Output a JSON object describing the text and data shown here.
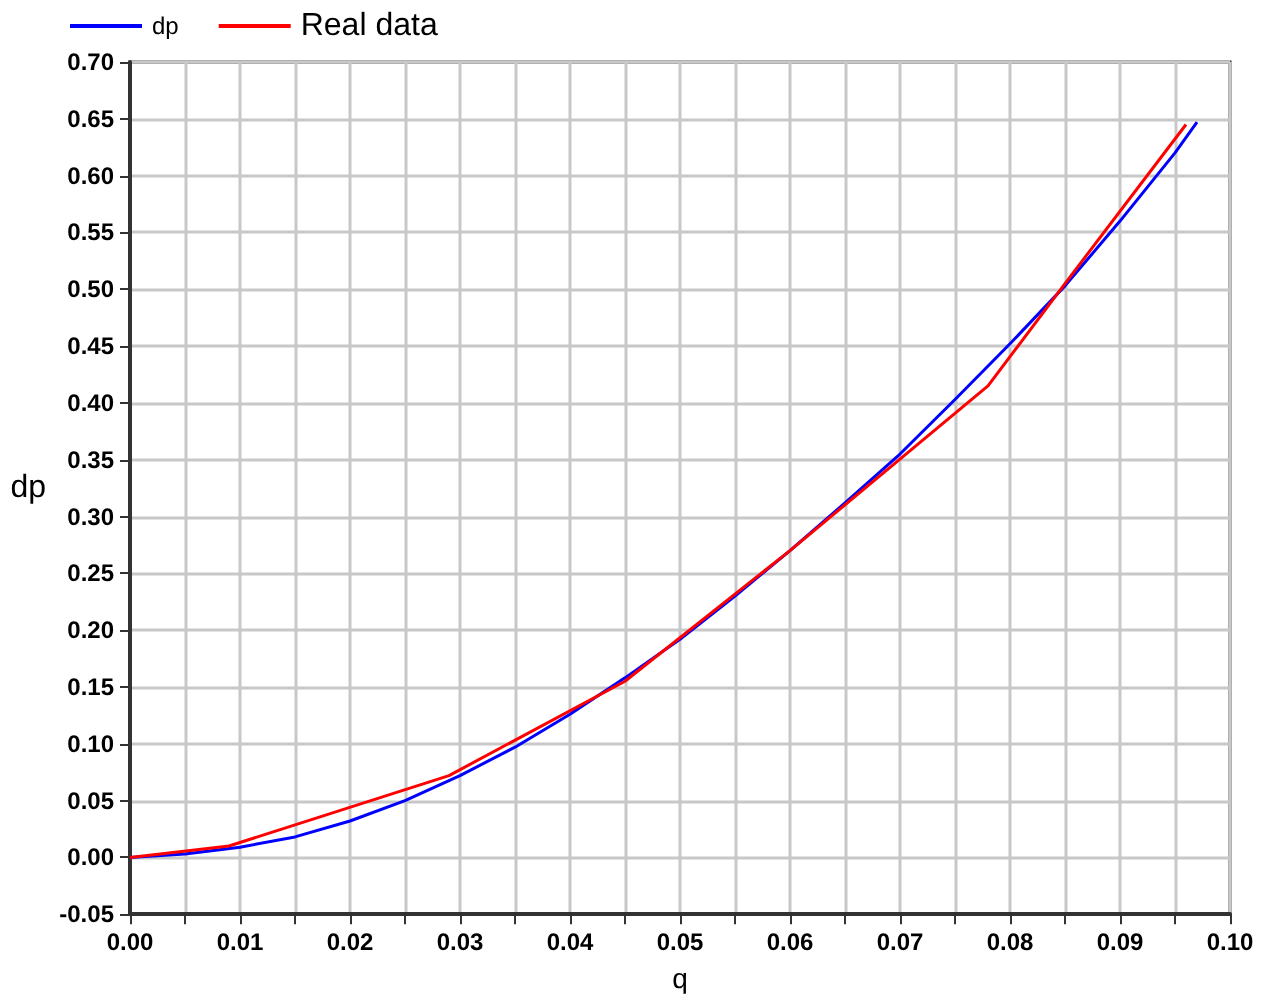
{
  "chart_data": {
    "type": "line",
    "xlabel": "q",
    "ylabel": "dp",
    "legend": "top left",
    "grid": true,
    "marker": "none",
    "line_style": "solid",
    "xlim": [
      0,
      0.1
    ],
    "xticks": [
      {
        "value": 0,
        "label": "0.00"
      },
      {
        "value": 0.005,
        "label": null
      },
      0.01,
      {
        "value": 0.015,
        "label": null
      },
      0.02,
      {
        "value": 0.025,
        "label": null
      },
      0.03,
      {
        "value": 0.035,
        "label": null
      },
      0.04,
      {
        "value": 0.045,
        "label": null
      },
      0.05,
      {
        "value": 0.055,
        "label": null
      },
      0.06,
      {
        "value": 0.065,
        "label": null
      },
      0.07,
      {
        "value": 0.075,
        "label": null
      },
      0.08,
      {
        "value": 0.085,
        "label": null
      },
      0.09,
      {
        "value": 0.095,
        "label": null
      },
      {
        "value": 0.1,
        "label": "0.10"
      }
    ],
    "ylim": [
      -0.05,
      0.7
    ],
    "yticks": [
      -0.05,
      {
        "value": 0,
        "label": "0.00"
      },
      0.05,
      {
        "value": 0.1,
        "label": "0.10"
      },
      0.15,
      {
        "value": 0.2,
        "label": "0.20"
      },
      0.25,
      {
        "value": 0.3,
        "label": "0.30"
      },
      0.35,
      {
        "value": 0.4,
        "label": "0.40"
      },
      0.45,
      {
        "value": 0.5,
        "label": "0.50"
      },
      0.55,
      {
        "value": 0.6,
        "label": "0.60"
      },
      0.65,
      {
        "value": 0.7,
        "label": "0.70"
      }
    ],
    "series": [
      {
        "name": "dp",
        "color": "#0000ff",
        "x": [
          0,
          0.005,
          0.01,
          0.015,
          0.02,
          0.025,
          0.03,
          0.035,
          0.04,
          0.045,
          0.05,
          0.055,
          0.06,
          0.065,
          0.07,
          0.075,
          0.08,
          0.085,
          0.09,
          0.095,
          0.097
        ],
        "values": [
          0,
          0.003,
          0.009,
          0.018,
          0.032,
          0.05,
          0.072,
          0.097,
          0.126,
          0.158,
          0.192,
          0.23,
          0.27,
          0.312,
          0.355,
          0.403,
          0.452,
          0.503,
          0.56,
          0.62,
          0.647
        ]
      },
      {
        "name": "Real data",
        "color": "#ff0000",
        "x": [
          0,
          0.009,
          0.029,
          0.045,
          0.06,
          0.078,
          0.085,
          0.096
        ],
        "values": [
          0,
          0.01,
          0.072,
          0.155,
          0.27,
          0.415,
          0.505,
          0.645
        ]
      }
    ]
  }
}
